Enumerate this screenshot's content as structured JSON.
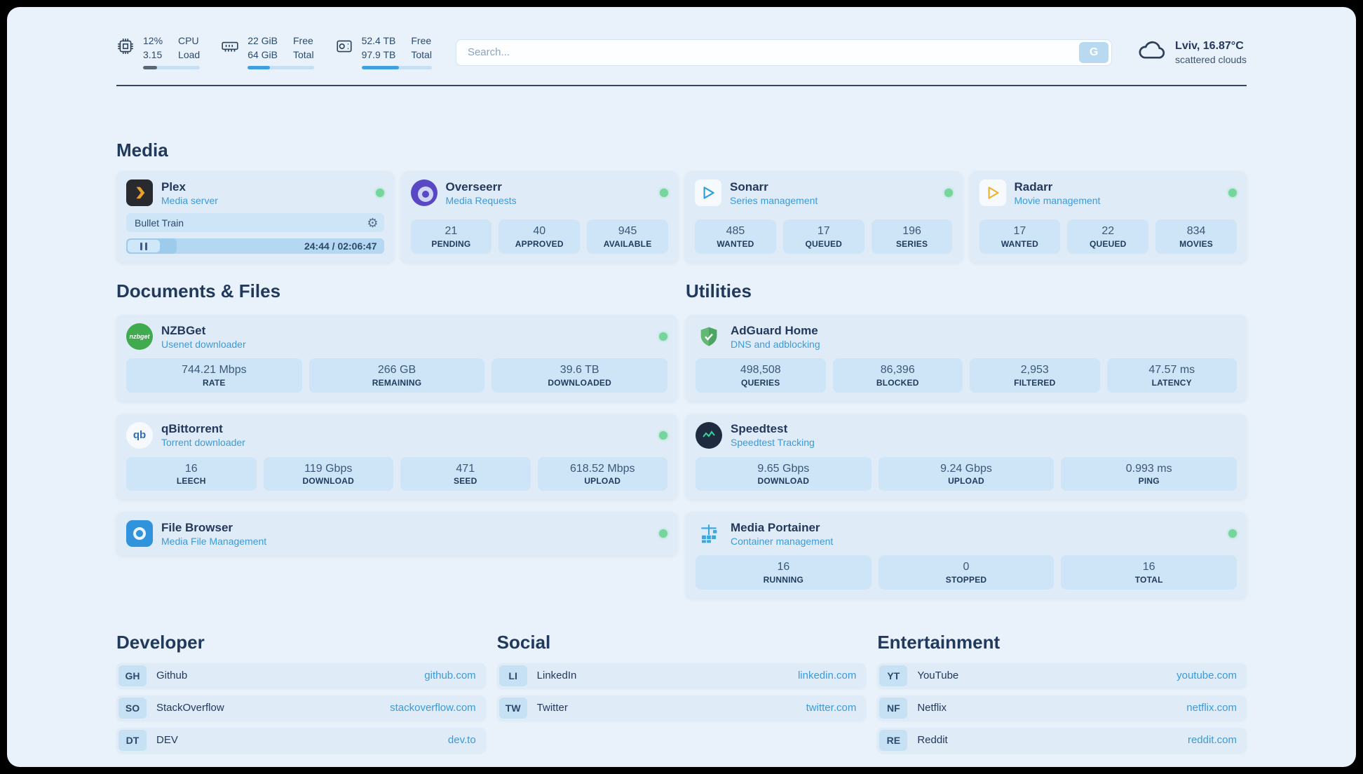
{
  "topbar": {
    "cpu": {
      "value_line1": "12%",
      "value_line2": "3.15",
      "label_line1": "CPU",
      "label_line2": "Load",
      "progress": 25
    },
    "ram": {
      "value_line1": "22 GiB",
      "value_line2": "64 GiB",
      "label_line1": "Free",
      "label_line2": "Total",
      "progress": 34
    },
    "disk": {
      "value_line1": "52.4 TB",
      "value_line2": "97.9 TB",
      "label_line1": "Free",
      "label_line2": "Total",
      "progress": 53
    },
    "search": {
      "placeholder": "Search...",
      "button_label": "G"
    },
    "weather": {
      "location": "Lviv, 16.87°C",
      "condition": "scattered clouds",
      "icon": "cloud-icon"
    }
  },
  "media": {
    "title": "Media",
    "apps": [
      {
        "name": "Plex",
        "subtitle": "Media server",
        "online": true,
        "icon": "plex-icon",
        "player": {
          "title": "Bullet Train",
          "time_display": "24:44 / 02:06:47",
          "progress": 19.5
        }
      },
      {
        "name": "Overseerr",
        "subtitle": "Media Requests",
        "online": true,
        "icon": "overseerr-icon",
        "stats": [
          {
            "value": "21",
            "label": "PENDING"
          },
          {
            "value": "40",
            "label": "APPROVED"
          },
          {
            "value": "945",
            "label": "AVAILABLE"
          }
        ]
      },
      {
        "name": "Sonarr",
        "subtitle": "Series management",
        "online": true,
        "icon": "sonarr-icon",
        "stats": [
          {
            "value": "485",
            "label": "WANTED"
          },
          {
            "value": "17",
            "label": "QUEUED"
          },
          {
            "value": "196",
            "label": "SERIES"
          }
        ]
      },
      {
        "name": "Radarr",
        "subtitle": "Movie management",
        "online": true,
        "icon": "radarr-icon",
        "stats": [
          {
            "value": "17",
            "label": "WANTED"
          },
          {
            "value": "22",
            "label": "QUEUED"
          },
          {
            "value": "834",
            "label": "MOVIES"
          }
        ]
      }
    ]
  },
  "documents": {
    "title": "Documents & Files",
    "apps": [
      {
        "name": "NZBGet",
        "subtitle": "Usenet downloader",
        "online": true,
        "icon": "nzbget-icon",
        "icon_text": "nzbget",
        "stats": [
          {
            "value": "744.21 Mbps",
            "label": "RATE"
          },
          {
            "value": "266 GB",
            "label": "REMAINING"
          },
          {
            "value": "39.6 TB",
            "label": "DOWNLOADED"
          }
        ]
      },
      {
        "name": "qBittorrent",
        "subtitle": "Torrent downloader",
        "online": true,
        "icon": "qbittorrent-icon",
        "icon_text": "qb",
        "stats": [
          {
            "value": "16",
            "label": "LEECH"
          },
          {
            "value": "119 Gbps",
            "label": "DOWNLOAD"
          },
          {
            "value": "471",
            "label": "SEED"
          },
          {
            "value": "618.52 Mbps",
            "label": "UPLOAD"
          }
        ]
      },
      {
        "name": "File Browser",
        "subtitle": "Media File Management",
        "online": true,
        "icon": "filebrowser-icon"
      }
    ]
  },
  "utilities": {
    "title": "Utilities",
    "apps": [
      {
        "name": "AdGuard Home",
        "subtitle": "DNS and adblocking",
        "icon": "adguard-icon",
        "stats": [
          {
            "value": "498,508",
            "label": "QUERIES"
          },
          {
            "value": "86,396",
            "label": "BLOCKED"
          },
          {
            "value": "2,953",
            "label": "FILTERED"
          },
          {
            "value": "47.57 ms",
            "label": "LATENCY"
          }
        ]
      },
      {
        "name": "Speedtest",
        "subtitle": "Speedtest Tracking",
        "icon": "speedtest-icon",
        "stats": [
          {
            "value": "9.65 Gbps",
            "label": "DOWNLOAD"
          },
          {
            "value": "9.24 Gbps",
            "label": "UPLOAD"
          },
          {
            "value": "0.993 ms",
            "label": "PING"
          }
        ]
      },
      {
        "name": "Media Portainer",
        "subtitle": "Container management",
        "online": true,
        "icon": "portainer-icon",
        "stats": [
          {
            "value": "16",
            "label": "RUNNING"
          },
          {
            "value": "0",
            "label": "STOPPED"
          },
          {
            "value": "16",
            "label": "TOTAL"
          }
        ]
      }
    ]
  },
  "bookmark_groups": [
    {
      "title": "Developer",
      "items": [
        {
          "badge": "GH",
          "name": "Github",
          "url": "github.com"
        },
        {
          "badge": "SO",
          "name": "StackOverflow",
          "url": "stackoverflow.com"
        },
        {
          "badge": "DT",
          "name": "DEV",
          "url": "dev.to"
        }
      ]
    },
    {
      "title": "Social",
      "items": [
        {
          "badge": "LI",
          "name": "LinkedIn",
          "url": "linkedin.com"
        },
        {
          "badge": "TW",
          "name": "Twitter",
          "url": "twitter.com"
        }
      ]
    },
    {
      "title": "Entertainment",
      "items": [
        {
          "badge": "YT",
          "name": "YouTube",
          "url": "youtube.com"
        },
        {
          "badge": "NF",
          "name": "Netflix",
          "url": "netflix.com"
        },
        {
          "badge": "RE",
          "name": "Reddit",
          "url": "reddit.com"
        }
      ]
    }
  ],
  "colors": {
    "background": "#e9f2fa",
    "card": "#dfecf8",
    "stat_box": "#cde5f7",
    "accent_blue": "#3b9ad8",
    "text_dark": "#24385c",
    "status_green": "#74d69a"
  }
}
